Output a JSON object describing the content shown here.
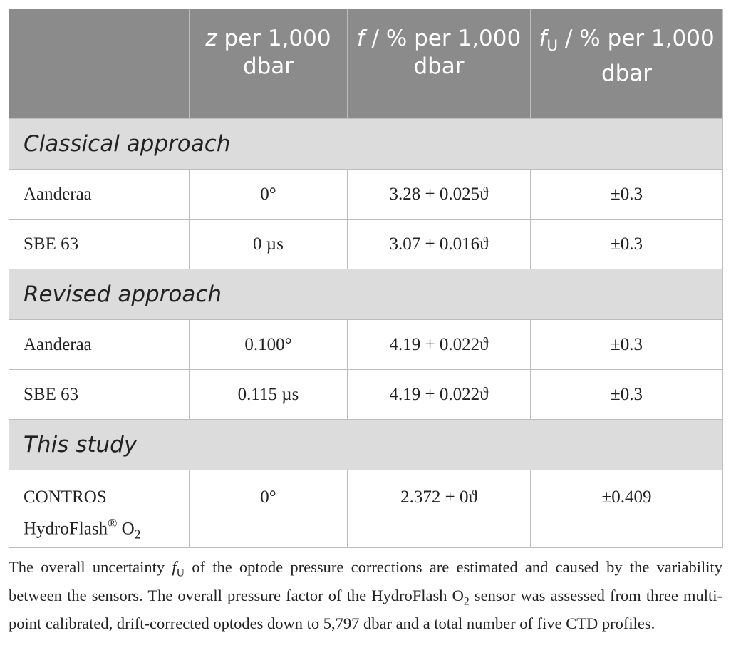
{
  "table": {
    "header": [
      [
        {
          "italic": "z"
        },
        {
          "text": " per 1,000 dbar"
        }
      ],
      [
        {
          "italic": "f"
        },
        {
          "text": " / % per 1,000 dbar"
        }
      ],
      [
        {
          "italic": "f"
        },
        {
          "sub": "U"
        },
        {
          "text": " / % per 1,000 dbar"
        }
      ]
    ],
    "sections": [
      {
        "title": "Classical approach",
        "rows": [
          [
            "Aanderaa",
            "0°",
            "3.28 + 0.025ϑ",
            "±0.3"
          ],
          [
            "SBE 63",
            "0 µs",
            "3.07 + 0.016ϑ",
            "±0.3"
          ]
        ]
      },
      {
        "title": "Revised approach",
        "rows": [
          [
            "Aanderaa",
            "0.100°",
            "4.19 + 0.022ϑ",
            "±0.3"
          ],
          [
            "SBE 63",
            "0.115 µs",
            "4.19 + 0.022ϑ",
            "±0.3"
          ]
        ]
      },
      {
        "title": "This study",
        "rows": [
          [
            [
              {
                "text": "CONTROS HydroFlash"
              },
              {
                "sup": "®"
              },
              {
                "text": " O"
              },
              {
                "sub": "2"
              }
            ],
            "0°",
            "2.372 + 0ϑ",
            "±0.409"
          ]
        ]
      }
    ]
  },
  "caption": [
    {
      "text": "The overall uncertainty "
    },
    {
      "italic": "f"
    },
    {
      "sub": "U"
    },
    {
      "text": " of the optode pressure corrections are estimated and caused by the variability between the sensors. The overall pressure factor of the HydroFlash O"
    },
    {
      "sub": "2"
    },
    {
      "text": " sensor was assessed from three multi-point calibrated, drift-corrected optodes down to 5,797 dbar and a total number of five CTD profiles."
    }
  ]
}
